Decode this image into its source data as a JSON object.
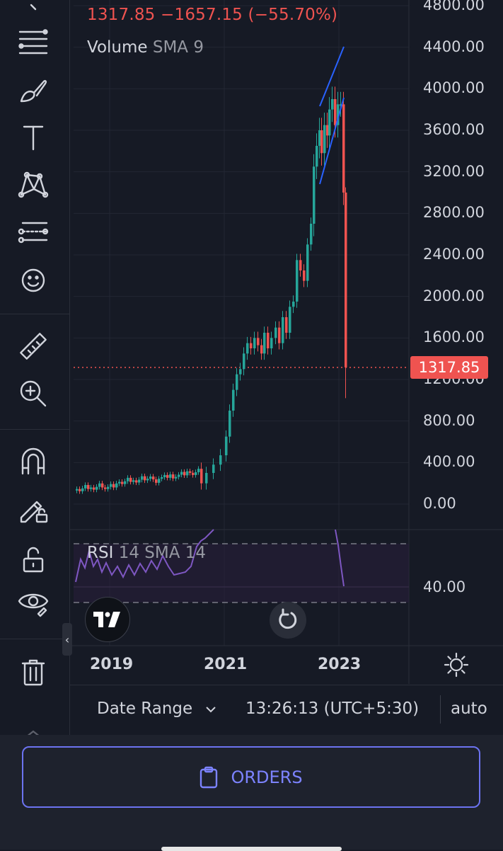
{
  "legend": {
    "price_change": "1317.85  −1657.15 (−55.70%)",
    "volume_label": "Volume",
    "volume_sma": "SMA 9",
    "rsi_label": "RSI",
    "rsi_params": "14 SMA 14"
  },
  "price_axis": {
    "labels": [
      "4800.00",
      "4400.00",
      "4000.00",
      "3600.00",
      "3200.00",
      "2800.00",
      "2400.00",
      "2000.00",
      "1600.00",
      "1200.00",
      "800.00",
      "400.00",
      "0.00"
    ],
    "current_price": "1317.85",
    "current_color": "#ef5350"
  },
  "rsi_axis": {
    "label": "40.00"
  },
  "time_axis": {
    "labels": [
      "2019",
      "2021",
      "2023"
    ]
  },
  "toolbar": {
    "tools": [
      "menu-lines-icon",
      "brush-icon",
      "text-icon",
      "pattern-icon",
      "fib-icon",
      "emoji-icon",
      "ruler-icon",
      "zoom-in-icon",
      "magnet-icon",
      "lock-pencil-icon",
      "lock-icon",
      "eye-icon",
      "trash-icon"
    ]
  },
  "bottom": {
    "date_range": "Date Range",
    "clock": "13:26:13 (UTC+5:30)",
    "scale": "auto"
  },
  "orders": {
    "label": "ORDERS"
  },
  "colors": {
    "up": "#26a69a",
    "down": "#ef5350",
    "trend": "#2962ff",
    "rsi": "#7e57c2"
  },
  "chart_data": {
    "type": "candlestick",
    "y_range": [
      0,
      4800
    ],
    "current_price": 1317.85,
    "change": -1657.15,
    "change_pct": -55.7,
    "x_ticks": [
      "2019",
      "2021",
      "2023"
    ]
  }
}
